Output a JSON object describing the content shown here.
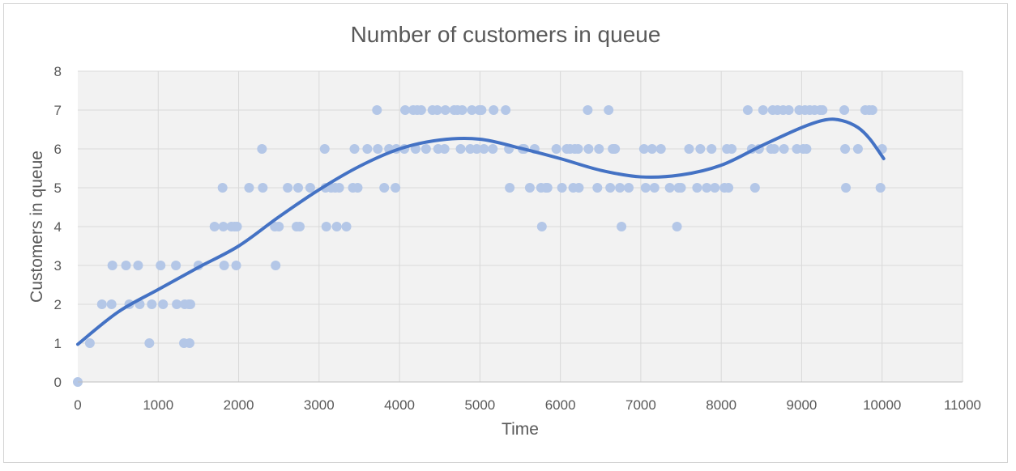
{
  "chart_data": {
    "type": "scatter",
    "title": "Number of customers in queue",
    "xlabel": "Time",
    "ylabel": "Customers in queue",
    "xlim": [
      0,
      11000
    ],
    "ylim": [
      0,
      8
    ],
    "x_ticks": [
      "0",
      "1000",
      "2000",
      "3000",
      "4000",
      "5000",
      "6000",
      "7000",
      "8000",
      "9000",
      "10000",
      "11000"
    ],
    "y_ticks": [
      "0",
      "1",
      "2",
      "3",
      "4",
      "5",
      "6",
      "7",
      "8"
    ],
    "grid": true,
    "legend": "none",
    "colors": {
      "points": "#b4c7e7",
      "trendline": "#4472c4",
      "grid": "#d9d9d9",
      "plot_bg": "#f2f2f2",
      "text": "#595959"
    },
    "series": [
      {
        "kind": "points",
        "points": [
          [
            0,
            0
          ],
          [
            150,
            1
          ],
          [
            300,
            2
          ],
          [
            420,
            2
          ],
          [
            430,
            3
          ],
          [
            600,
            3
          ],
          [
            640,
            2
          ],
          [
            750,
            3
          ],
          [
            770,
            2
          ],
          [
            890,
            1
          ],
          [
            920,
            2
          ],
          [
            1030,
            3
          ],
          [
            1060,
            2
          ],
          [
            1220,
            3
          ],
          [
            1230,
            2
          ],
          [
            1320,
            1
          ],
          [
            1330,
            2
          ],
          [
            1380,
            2
          ],
          [
            1390,
            1
          ],
          [
            1400,
            2
          ],
          [
            1500,
            3
          ],
          [
            1700,
            4
          ],
          [
            1800,
            5
          ],
          [
            1810,
            4
          ],
          [
            1820,
            3
          ],
          [
            1910,
            4
          ],
          [
            1950,
            4
          ],
          [
            1970,
            3
          ],
          [
            1980,
            4
          ],
          [
            2130,
            5
          ],
          [
            2290,
            6
          ],
          [
            2300,
            5
          ],
          [
            2450,
            4
          ],
          [
            2460,
            3
          ],
          [
            2500,
            4
          ],
          [
            2610,
            5
          ],
          [
            2720,
            4
          ],
          [
            2740,
            5
          ],
          [
            2760,
            4
          ],
          [
            2890,
            5
          ],
          [
            3070,
            6
          ],
          [
            3080,
            5
          ],
          [
            3090,
            4
          ],
          [
            3150,
            5
          ],
          [
            3200,
            5
          ],
          [
            3220,
            4
          ],
          [
            3250,
            5
          ],
          [
            3340,
            4
          ],
          [
            3420,
            5
          ],
          [
            3440,
            6
          ],
          [
            3480,
            5
          ],
          [
            3600,
            6
          ],
          [
            3720,
            7
          ],
          [
            3730,
            6
          ],
          [
            3810,
            5
          ],
          [
            3870,
            6
          ],
          [
            3950,
            5
          ],
          [
            3960,
            6
          ],
          [
            4060,
            6
          ],
          [
            4070,
            7
          ],
          [
            4170,
            7
          ],
          [
            4200,
            6
          ],
          [
            4220,
            7
          ],
          [
            4270,
            7
          ],
          [
            4330,
            6
          ],
          [
            4410,
            7
          ],
          [
            4470,
            7
          ],
          [
            4480,
            6
          ],
          [
            4560,
            6
          ],
          [
            4570,
            7
          ],
          [
            4680,
            7
          ],
          [
            4720,
            7
          ],
          [
            4760,
            6
          ],
          [
            4780,
            7
          ],
          [
            4880,
            6
          ],
          [
            4900,
            7
          ],
          [
            4960,
            6
          ],
          [
            4990,
            7
          ],
          [
            5020,
            7
          ],
          [
            5050,
            6
          ],
          [
            5160,
            6
          ],
          [
            5170,
            7
          ],
          [
            5320,
            7
          ],
          [
            5360,
            6
          ],
          [
            5370,
            5
          ],
          [
            5530,
            6
          ],
          [
            5550,
            6
          ],
          [
            5620,
            5
          ],
          [
            5680,
            6
          ],
          [
            5760,
            5
          ],
          [
            5770,
            4
          ],
          [
            5820,
            5
          ],
          [
            5840,
            5
          ],
          [
            5950,
            6
          ],
          [
            6020,
            5
          ],
          [
            6080,
            6
          ],
          [
            6120,
            6
          ],
          [
            6160,
            5
          ],
          [
            6180,
            6
          ],
          [
            6220,
            6
          ],
          [
            6230,
            5
          ],
          [
            6340,
            7
          ],
          [
            6350,
            6
          ],
          [
            6460,
            5
          ],
          [
            6480,
            6
          ],
          [
            6600,
            7
          ],
          [
            6620,
            5
          ],
          [
            6650,
            6
          ],
          [
            6670,
            6
          ],
          [
            6680,
            6
          ],
          [
            6740,
            5
          ],
          [
            6760,
            4
          ],
          [
            6850,
            5
          ],
          [
            7040,
            6
          ],
          [
            7060,
            5
          ],
          [
            7140,
            6
          ],
          [
            7170,
            5
          ],
          [
            7250,
            6
          ],
          [
            7360,
            5
          ],
          [
            7450,
            4
          ],
          [
            7470,
            5
          ],
          [
            7500,
            5
          ],
          [
            7600,
            6
          ],
          [
            7700,
            5
          ],
          [
            7740,
            6
          ],
          [
            7820,
            5
          ],
          [
            7880,
            6
          ],
          [
            7920,
            5
          ],
          [
            8040,
            5
          ],
          [
            8070,
            6
          ],
          [
            8090,
            5
          ],
          [
            8130,
            6
          ],
          [
            8330,
            7
          ],
          [
            8380,
            6
          ],
          [
            8420,
            5
          ],
          [
            8470,
            6
          ],
          [
            8520,
            7
          ],
          [
            8620,
            6
          ],
          [
            8640,
            7
          ],
          [
            8660,
            6
          ],
          [
            8700,
            7
          ],
          [
            8770,
            7
          ],
          [
            8780,
            6
          ],
          [
            8840,
            7
          ],
          [
            8940,
            6
          ],
          [
            8970,
            7
          ],
          [
            9020,
            6
          ],
          [
            9040,
            7
          ],
          [
            9060,
            6
          ],
          [
            9100,
            7
          ],
          [
            9160,
            7
          ],
          [
            9230,
            7
          ],
          [
            9260,
            7
          ],
          [
            9530,
            7
          ],
          [
            9540,
            6
          ],
          [
            9550,
            5
          ],
          [
            9700,
            6
          ],
          [
            9790,
            7
          ],
          [
            9840,
            7
          ],
          [
            9880,
            7
          ],
          [
            9980,
            5
          ],
          [
            10000,
            6
          ]
        ]
      },
      {
        "kind": "trendline",
        "points": [
          [
            0,
            0.97
          ],
          [
            500,
            1.8
          ],
          [
            1000,
            2.38
          ],
          [
            1500,
            2.95
          ],
          [
            2000,
            3.5
          ],
          [
            2500,
            4.25
          ],
          [
            3000,
            4.95
          ],
          [
            3500,
            5.55
          ],
          [
            4000,
            6.0
          ],
          [
            4500,
            6.23
          ],
          [
            5000,
            6.25
          ],
          [
            5500,
            6.02
          ],
          [
            6000,
            5.75
          ],
          [
            6500,
            5.45
          ],
          [
            7000,
            5.28
          ],
          [
            7500,
            5.33
          ],
          [
            8000,
            5.58
          ],
          [
            8500,
            6.08
          ],
          [
            9000,
            6.55
          ],
          [
            9300,
            6.75
          ],
          [
            9500,
            6.73
          ],
          [
            9700,
            6.55
          ],
          [
            9850,
            6.25
          ],
          [
            10020,
            5.75
          ]
        ]
      }
    ]
  }
}
